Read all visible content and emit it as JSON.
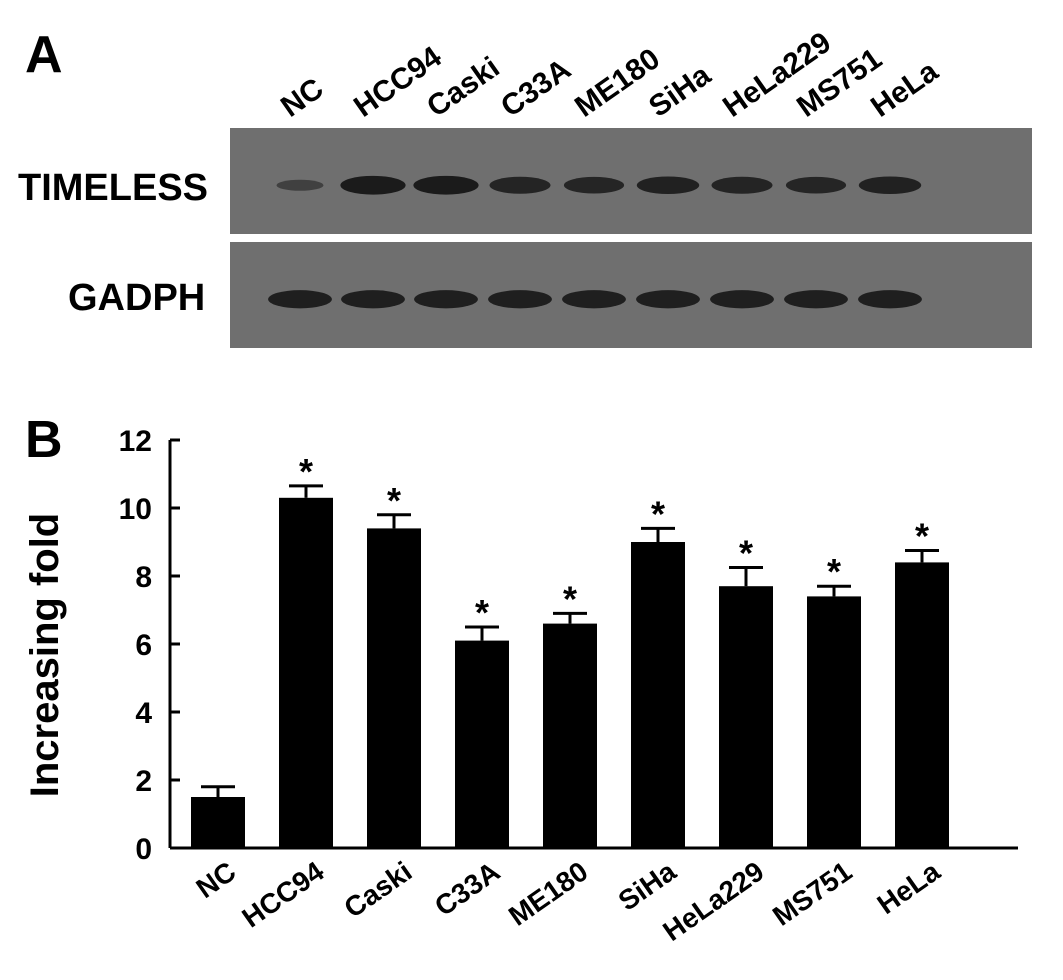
{
  "panel_a": {
    "label": "A",
    "lanes": [
      "NC",
      "HCC94",
      "Caski",
      "C33A",
      "ME180",
      "SiHa",
      "HeLa229",
      "MS751",
      "HeLa"
    ],
    "blots": [
      {
        "name": "TIMELESS",
        "intensity": [
          0.25,
          0.9,
          0.9,
          0.75,
          0.72,
          0.8,
          0.75,
          0.72,
          0.8
        ]
      },
      {
        "name": "GADPH",
        "intensity": [
          0.85,
          0.85,
          0.85,
          0.85,
          0.85,
          0.85,
          0.85,
          0.85,
          0.85
        ]
      }
    ],
    "colors": {
      "membrane": "#6f6f6f",
      "band": "#111111"
    }
  },
  "chart_data": {
    "type": "bar",
    "panel_label": "B",
    "categories": [
      "NC",
      "HCC94",
      "Caski",
      "C33A",
      "ME180",
      "SiHa",
      "HeLa229",
      "MS751",
      "HeLa"
    ],
    "values": [
      1.5,
      10.3,
      9.4,
      6.1,
      6.6,
      9.0,
      7.7,
      7.4,
      8.4
    ],
    "errors": [
      0.3,
      0.35,
      0.4,
      0.4,
      0.3,
      0.4,
      0.55,
      0.3,
      0.35
    ],
    "annotations": [
      "",
      "*",
      "*",
      "*",
      "*",
      "*",
      "*",
      "*",
      "*"
    ],
    "ylabel": "Increasing fold",
    "xlabel": "",
    "ylim": [
      0,
      12
    ],
    "yticks": [
      0,
      2,
      4,
      6,
      8,
      10,
      12
    ],
    "grid": false,
    "colors": {
      "bar": "#000000"
    }
  }
}
